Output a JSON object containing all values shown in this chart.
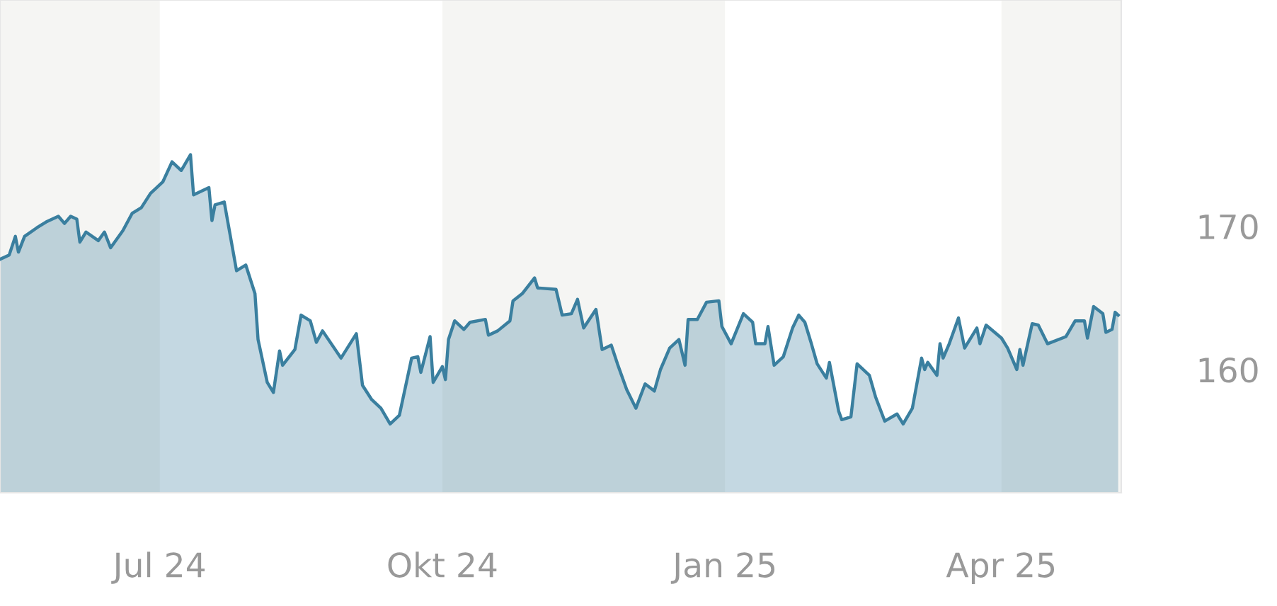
{
  "chart_data": {
    "type": "area",
    "x": [
      "2024-05-10",
      "2024-05-13",
      "2024-05-15",
      "2024-05-16",
      "2024-05-18",
      "2024-05-22",
      "2024-05-25",
      "2024-05-29",
      "2024-05-31",
      "2024-06-02",
      "2024-06-04",
      "2024-06-05",
      "2024-06-07",
      "2024-06-11",
      "2024-06-13",
      "2024-06-15",
      "2024-06-19",
      "2024-06-22",
      "2024-06-25",
      "2024-06-28",
      "2024-07-02",
      "2024-07-05",
      "2024-07-08",
      "2024-07-11",
      "2024-07-12",
      "2024-07-17",
      "2024-07-18",
      "2024-07-19",
      "2024-07-22",
      "2024-07-26",
      "2024-07-29",
      "2024-08-01",
      "2024-08-02",
      "2024-08-05",
      "2024-08-07",
      "2024-08-09",
      "2024-08-10",
      "2024-08-14",
      "2024-08-16",
      "2024-08-19",
      "2024-08-21",
      "2024-08-23",
      "2024-08-29",
      "2024-09-03",
      "2024-09-05",
      "2024-09-08",
      "2024-09-11",
      "2024-09-14",
      "2024-09-17",
      "2024-09-21",
      "2024-09-23",
      "2024-09-24",
      "2024-09-27",
      "2024-09-28",
      "2024-10-01",
      "2024-10-02",
      "2024-10-03",
      "2024-10-05",
      "2024-10-08",
      "2024-10-10",
      "2024-10-15",
      "2024-10-16",
      "2024-10-19",
      "2024-10-23",
      "2024-10-24",
      "2024-10-27",
      "2024-10-31",
      "2024-11-01",
      "2024-11-07",
      "2024-11-09",
      "2024-11-12",
      "2024-11-14",
      "2024-11-16",
      "2024-11-20",
      "2024-11-22",
      "2024-11-25",
      "2024-11-27",
      "2024-11-30",
      "2024-12-03",
      "2024-12-06",
      "2024-12-09",
      "2024-12-11",
      "2024-12-14",
      "2024-12-17",
      "2024-12-19",
      "2024-12-20",
      "2024-12-23",
      "2024-12-26",
      "2024-12-30",
      "2024-12-31",
      "2025-01-03",
      "2025-01-07",
      "2025-01-10",
      "2025-01-11",
      "2025-01-14",
      "2025-01-15",
      "2025-01-17",
      "2025-01-20",
      "2025-01-23",
      "2025-01-25",
      "2025-01-27",
      "2025-01-29",
      "2025-01-31",
      "2025-02-03",
      "2025-02-04",
      "2025-02-07",
      "2025-02-08",
      "2025-02-11",
      "2025-02-13",
      "2025-02-17",
      "2025-02-19",
      "2025-02-22",
      "2025-02-26",
      "2025-02-28",
      "2025-03-03",
      "2025-03-06",
      "2025-03-07",
      "2025-03-08",
      "2025-03-11",
      "2025-03-12",
      "2025-03-13",
      "2025-03-15",
      "2025-03-18",
      "2025-03-20",
      "2025-03-24",
      "2025-03-25",
      "2025-03-27",
      "2025-04-01",
      "2025-04-03",
      "2025-04-06",
      "2025-04-07",
      "2025-04-08",
      "2025-04-11",
      "2025-04-13",
      "2025-04-16",
      "2025-04-22",
      "2025-04-25",
      "2025-04-28",
      "2025-04-29",
      "2025-05-01",
      "2025-05-04",
      "2025-05-05",
      "2025-05-07",
      "2025-05-08",
      "2025-05-09"
    ],
    "series": [
      {
        "color": "#3a7f9f",
        "values": [
          167.7,
          168.0,
          169.3,
          168.2,
          169.3,
          169.9,
          170.3,
          170.7,
          170.2,
          170.7,
          170.5,
          168.9,
          169.6,
          169.0,
          169.6,
          168.5,
          169.7,
          170.9,
          171.3,
          172.3,
          173.1,
          174.5,
          173.9,
          175.0,
          172.2,
          172.7,
          170.4,
          171.5,
          171.7,
          166.9,
          167.3,
          165.3,
          162.1,
          159.1,
          158.4,
          161.3,
          160.3,
          161.4,
          163.8,
          163.4,
          161.9,
          162.7,
          160.8,
          162.5,
          158.9,
          157.9,
          157.3,
          156.2,
          156.8,
          160.8,
          160.9,
          159.8,
          162.3,
          159.1,
          160.2,
          159.3,
          162.1,
          163.4,
          162.8,
          163.3,
          163.5,
          162.4,
          162.7,
          163.4,
          164.8,
          165.3,
          166.4,
          165.7,
          165.6,
          163.8,
          163.9,
          164.9,
          162.9,
          164.2,
          161.4,
          161.7,
          160.4,
          158.6,
          157.3,
          159.0,
          158.5,
          160.0,
          161.5,
          162.1,
          160.3,
          163.5,
          163.5,
          164.7,
          164.8,
          163.0,
          161.8,
          163.9,
          163.3,
          161.8,
          161.8,
          163.0,
          160.3,
          160.9,
          162.9,
          163.8,
          163.3,
          161.9,
          160.4,
          159.4,
          160.5,
          157.1,
          156.5,
          156.7,
          160.4,
          159.6,
          158.1,
          156.4,
          156.9,
          156.2,
          157.3,
          160.8,
          160.0,
          160.5,
          159.6,
          161.8,
          160.8,
          161.8,
          163.6,
          161.5,
          162.9,
          161.8,
          163.1,
          162.2,
          161.5,
          160.0,
          161.4,
          160.3,
          163.2,
          163.1,
          161.8,
          162.3,
          163.4,
          163.4,
          162.2,
          164.4,
          163.9,
          162.6,
          162.8,
          164.0,
          163.8
        ]
      }
    ],
    "xlim": [
      "2024-05-10",
      "2025-05-10"
    ],
    "xticks": [
      {
        "value": "2024-07-01",
        "label": "Jul 24"
      },
      {
        "value": "2024-10-01",
        "label": "Okt 24"
      },
      {
        "value": "2025-01-01",
        "label": "Jan 25"
      },
      {
        "value": "2025-04-01",
        "label": "Apr 25"
      }
    ],
    "ylim": [
      151.4,
      185.8
    ],
    "yticks": [
      160,
      170
    ],
    "bands": [
      {
        "axis": "x",
        "from": "2024-05-10",
        "to": "2024-07-01",
        "color": "#f5f5f3"
      },
      {
        "axis": "x",
        "from": "2024-10-01",
        "to": "2025-01-01",
        "color": "#f5f5f3"
      },
      {
        "axis": "x",
        "from": "2025-04-01",
        "to": "2025-05-10",
        "color": "#f5f5f3"
      }
    ],
    "grid": false
  }
}
